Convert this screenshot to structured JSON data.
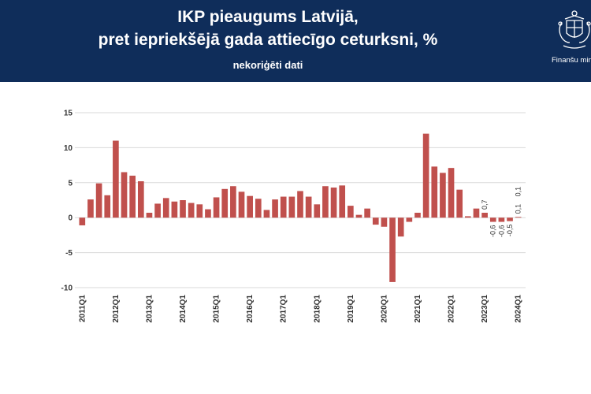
{
  "header": {
    "title_line1": "IKP pieaugums Latvijā,",
    "title_line2": "pret iepriekšējā gada attiecīgo ceturksni, %",
    "subtitle": "nekoriģēti dati",
    "logo_text": "Finanšu mini",
    "background": "#0f2d5a"
  },
  "chart_data": {
    "type": "bar",
    "title": "IKP pieaugums Latvijā, pret iepriekšējā gada attiecīgo ceturksni, %",
    "subtitle": "nekoriģēti dati",
    "bar_color": "#c0504d",
    "ylim": [
      -10,
      15
    ],
    "yticks": [
      15,
      10,
      5,
      0,
      -5,
      -10
    ],
    "grid": true,
    "legend": "none",
    "categories": [
      "2011Q1",
      "2011Q2",
      "2011Q3",
      "2011Q4",
      "2012Q1",
      "2012Q2",
      "2012Q3",
      "2012Q4",
      "2013Q1",
      "2013Q2",
      "2013Q3",
      "2013Q4",
      "2014Q1",
      "2014Q2",
      "2014Q3",
      "2014Q4",
      "2015Q1",
      "2015Q2",
      "2015Q3",
      "2015Q4",
      "2016Q1",
      "2016Q2",
      "2016Q3",
      "2016Q4",
      "2017Q1",
      "2017Q2",
      "2017Q3",
      "2017Q4",
      "2018Q1",
      "2018Q2",
      "2018Q3",
      "2018Q4",
      "2019Q1",
      "2019Q2",
      "2019Q3",
      "2019Q4",
      "2020Q1",
      "2020Q2",
      "2020Q3",
      "2020Q4",
      "2021Q1",
      "2021Q2",
      "2021Q3",
      "2021Q4",
      "2022Q1",
      "2022Q2",
      "2022Q3",
      "2022Q4",
      "2023Q1",
      "2023Q2",
      "2023Q3",
      "2023Q4",
      "2024Q1"
    ],
    "tick_labels": [
      "2011Q1",
      "2012Q1",
      "2013Q1",
      "2014Q1",
      "2015Q1",
      "2016Q1",
      "2017Q1",
      "2018Q1",
      "2019Q1",
      "2020Q1",
      "2021Q1",
      "2022Q1",
      "2023Q1",
      "2024Q1"
    ],
    "values": [
      -1.1,
      2.6,
      4.9,
      3.2,
      11.0,
      6.5,
      6.0,
      5.2,
      0.7,
      2.0,
      2.8,
      2.3,
      2.5,
      2.1,
      1.9,
      1.2,
      2.9,
      4.1,
      4.5,
      3.7,
      3.1,
      2.7,
      1.1,
      2.6,
      3.0,
      3.0,
      3.8,
      3.0,
      1.9,
      4.5,
      4.3,
      4.6,
      1.7,
      0.4,
      1.3,
      -1.0,
      -1.3,
      -9.2,
      -2.7,
      -0.6,
      0.7,
      12.0,
      7.3,
      6.4,
      7.1,
      4.0,
      0.2,
      1.3,
      0.7,
      -0.6,
      -0.6,
      -0.5,
      0.1
    ],
    "data_labels": [
      {
        "index": 48,
        "text": "0,7"
      },
      {
        "index": 49,
        "text": "-0,6"
      },
      {
        "index": 50,
        "text": "-0,6"
      },
      {
        "index": 51,
        "text": "-0,5"
      },
      {
        "index": 52,
        "text": "0,1"
      },
      {
        "index": 52,
        "text": "0,1"
      }
    ]
  }
}
